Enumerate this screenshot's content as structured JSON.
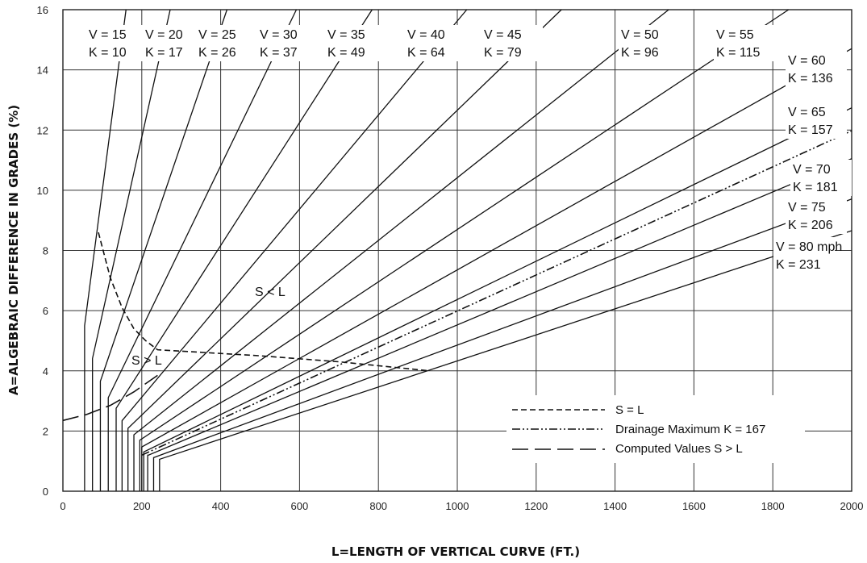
{
  "chart_data": {
    "type": "line",
    "xlabel": "L=LENGTH  OF  VERTICAL  CURVE  (FT.)",
    "ylabel": "A=ALGEBRAIC  DIFFERENCE  IN  GRADES  (%)",
    "xlim": [
      0,
      2000
    ],
    "ylim": [
      0,
      16
    ],
    "xticks": [
      "0",
      "200",
      "400",
      "600",
      "800",
      "1000",
      "1200",
      "1400",
      "1600",
      "1800",
      "2000"
    ],
    "yticks": [
      "0",
      "2",
      "4",
      "6",
      "8",
      "10",
      "12",
      "14",
      "16"
    ],
    "grid": true,
    "series": [
      {
        "v_label": "V = 15",
        "k_label": "K = 10",
        "k": 10,
        "min_length": 55
      },
      {
        "v_label": "V = 20",
        "k_label": "K = 17",
        "k": 17,
        "min_length": 75
      },
      {
        "v_label": "V = 25",
        "k_label": "K = 26",
        "k": 26,
        "min_length": 95
      },
      {
        "v_label": "V = 30",
        "k_label": "K = 37",
        "k": 37,
        "min_length": 115
      },
      {
        "v_label": "V = 35",
        "k_label": "K = 49",
        "k": 49,
        "min_length": 135
      },
      {
        "v_label": "V = 40",
        "k_label": "K = 64",
        "k": 64,
        "min_length": 150
      },
      {
        "v_label": "V = 45",
        "k_label": "K = 79",
        "k": 79,
        "min_length": 165
      },
      {
        "v_label": "V = 50",
        "k_label": "K = 96",
        "k": 96,
        "min_length": 180
      },
      {
        "v_label": "V = 55",
        "k_label": "K = 115",
        "k": 115,
        "min_length": 195
      },
      {
        "v_label": "V = 60",
        "k_label": "K = 136",
        "k": 136,
        "min_length": 200
      },
      {
        "v_label": "V = 65",
        "k_label": "K = 157",
        "k": 157,
        "min_length": 205
      },
      {
        "v_label": "V = 70",
        "k_label": "K = 181",
        "k": 181,
        "min_length": 215
      },
      {
        "v_label": "V = 75",
        "k_label": "K = 206",
        "k": 206,
        "min_length": 230
      },
      {
        "v_label": "V = 80 mph",
        "k_label": "K = 231",
        "k": 231,
        "min_length": 245
      }
    ],
    "drainage_line": {
      "k": 167,
      "start_length": 200
    },
    "s_equals_l_boundary": [
      [
        90,
        8.6
      ],
      [
        120,
        7.1
      ],
      [
        150,
        6.1
      ],
      [
        180,
        5.4
      ],
      [
        210,
        5.0
      ],
      [
        240,
        4.7
      ],
      [
        500,
        4.5
      ],
      [
        700,
        4.3
      ],
      [
        930,
        4.0
      ]
    ],
    "computed_s_gt_l": [
      [
        0,
        2.35
      ],
      [
        60,
        2.55
      ],
      [
        120,
        2.85
      ],
      [
        180,
        3.3
      ],
      [
        240,
        3.85
      ]
    ],
    "region_labels": {
      "s_less_l": "S < L",
      "s_greater_l": "S > L"
    },
    "legend": {
      "placement": "bottom-right",
      "items": [
        {
          "style": "short-dash",
          "label": "S = L"
        },
        {
          "style": "dash-dot-dot",
          "label": "Drainage Maximum K = 167"
        },
        {
          "style": "long-dash",
          "label": "Computed Values S > L"
        }
      ]
    }
  }
}
